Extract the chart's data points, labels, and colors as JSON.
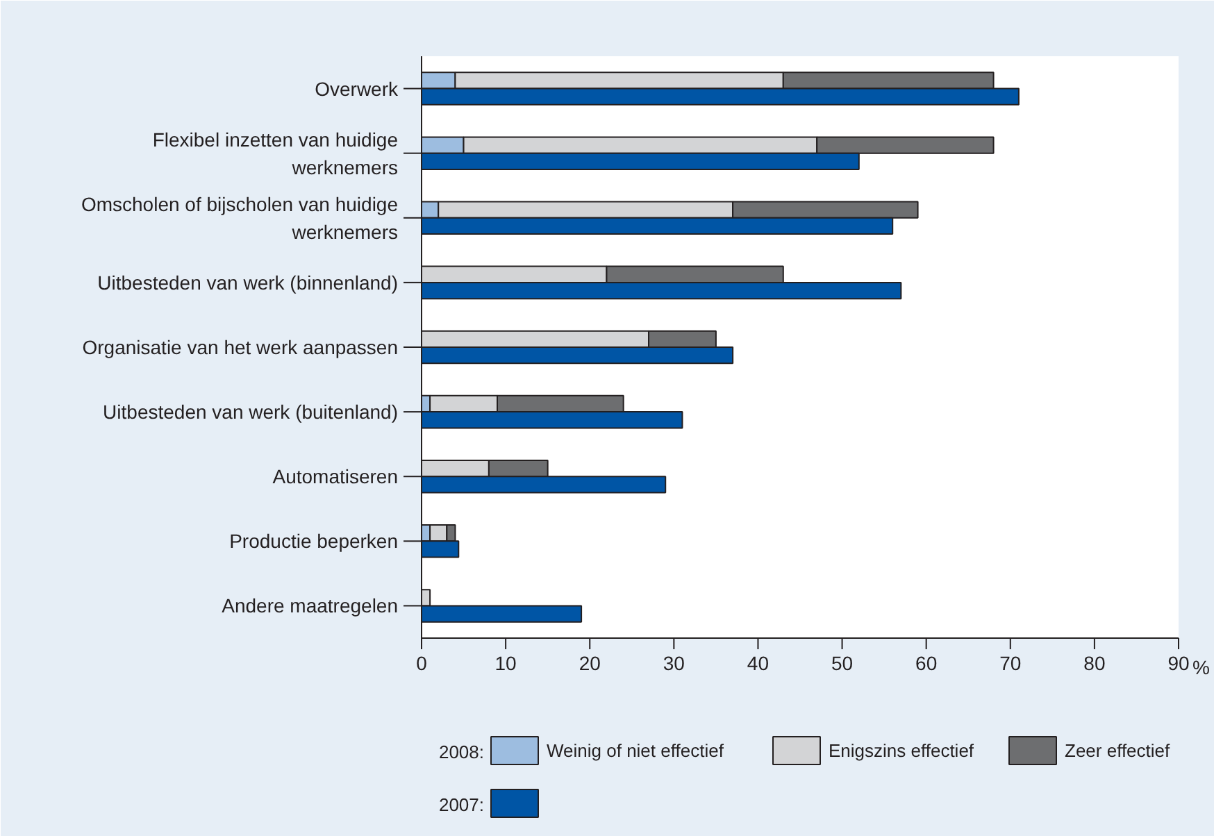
{
  "chart_data": [
    {
      "type": "bar",
      "orientation": "horizontal",
      "stacked": true,
      "categories": [
        "Overwerk",
        "Flexibel inzetten van huidige werknemers",
        "Omscholen of bijscholen van huidige werknemers",
        "Uitbesteden van werk (binnenland)",
        "Organisatie van het werk aanpassen",
        "Uitbesteden van werk (buitenland)",
        "Automatiseren",
        "Productie beperken",
        "Andere maatregelen"
      ],
      "series": [
        {
          "name": "Weinig of niet effectief",
          "color": "#9dbde0",
          "values": [
            4,
            5,
            2,
            0,
            0,
            1,
            0,
            1,
            0
          ]
        },
        {
          "name": "Enigszins effectief",
          "color": "#d3d4d6",
          "values": [
            39,
            42,
            35,
            22,
            27,
            8,
            8,
            2,
            1
          ]
        },
        {
          "name": "Zeer effectief",
          "color": "#6d6e70",
          "values": [
            25,
            21,
            22,
            21,
            8,
            15,
            7,
            1,
            0
          ]
        }
      ],
      "legend_title": "2008:",
      "xlim": [
        0,
        90
      ],
      "xticks": [
        0,
        10,
        20,
        30,
        40,
        50,
        60,
        70,
        80,
        90
      ],
      "xlabel": "%",
      "legend": "bottom",
      "grid": false
    },
    {
      "type": "bar",
      "orientation": "horizontal",
      "categories": [
        "Overwerk",
        "Flexibel inzetten van huidige werknemers",
        "Omscholen of bijscholen van huidige werknemers",
        "Uitbesteden van werk (binnenland)",
        "Organisatie van het werk aanpassen",
        "Uitbesteden van werk (buitenland)",
        "Automatiseren",
        "Productie beperken",
        "Andere maatregelen"
      ],
      "series": [
        {
          "name": "2007:",
          "color": "#0055a5",
          "values": [
            71,
            52,
            56,
            57,
            37,
            31,
            29,
            4.4,
            19
          ]
        }
      ],
      "xlim": [
        0,
        90
      ],
      "tick_labels": false,
      "legend": "bottom"
    }
  ]
}
